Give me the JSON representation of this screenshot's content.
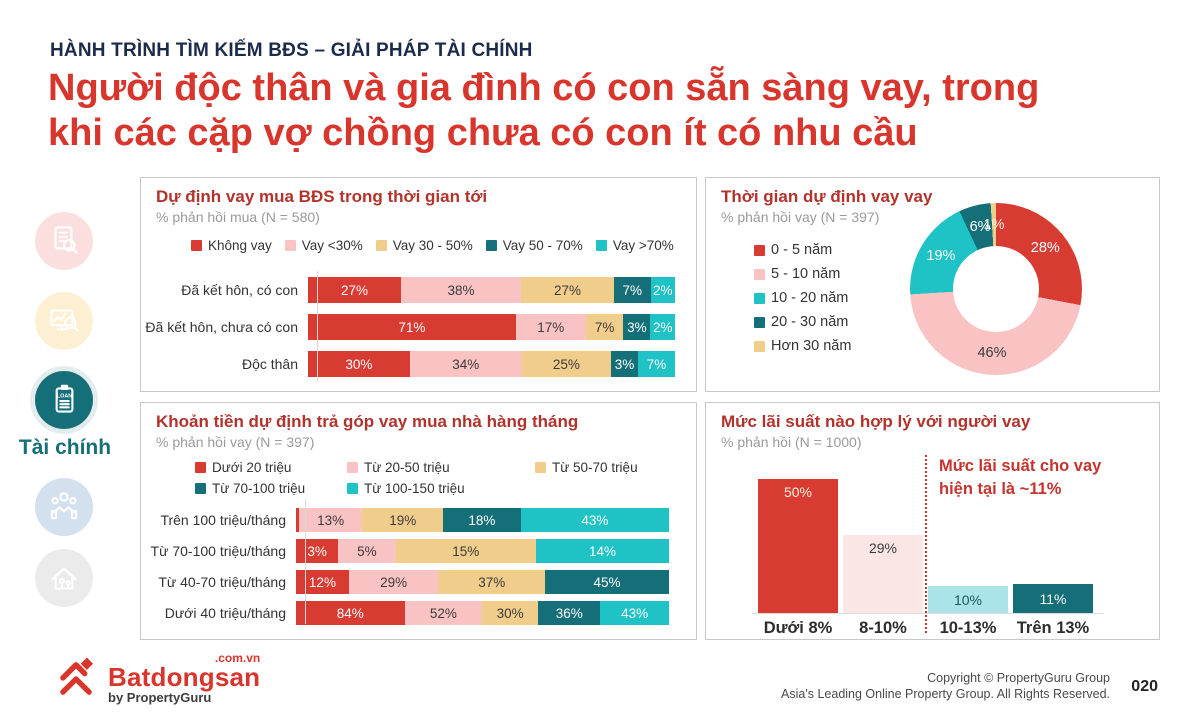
{
  "header": {
    "kicker": "HÀNH TRÌNH TÌM KIẾM BĐS – GIẢI PHÁP TÀI CHÍNH",
    "title_line1": "Người độc thân và gia đình có con sẵn sàng vay, trong",
    "title_line2": "khi các cặp vợ chồng chưa có con ít có nhu cầu"
  },
  "sidebar": {
    "active_label": "Tài chính",
    "active_badge": "LOAN",
    "icons": [
      "document-search-icon",
      "online-search-icon",
      "loan-icon",
      "handshake-icon",
      "home-family-icon"
    ]
  },
  "colors": {
    "red": "#d83b32",
    "pink": "#f8c3c2",
    "tan": "#f0cd8b",
    "teal": "#156f78",
    "cyan": "#1fc2c5",
    "light_pink": "#fae6e5",
    "light_cyan": "#aae4e9",
    "heading_red": "#d8352c",
    "panel_title_red": "#b2332c",
    "navy": "#1d2b4a"
  },
  "chart_data": [
    {
      "type": "bar",
      "variant": "horizontal-stacked",
      "title": "Dự định vay mua BĐS trong thời gian tới",
      "subtitle": "% phản hồi mua (N = 580)",
      "legend_position": "top",
      "series": [
        "Không vay",
        "Vay <30%",
        "Vay 30 - 50%",
        "Vay 50 - 70%",
        "Vay >70%"
      ],
      "series_colors": [
        "#d83b32",
        "#f8c3c2",
        "#f0cd8b",
        "#156f78",
        "#1fc2c5"
      ],
      "series_text_colors": [
        "#ffffff",
        "#3b3b3b",
        "#3b3b3b",
        "#ffffff",
        "#ffffff"
      ],
      "categories": [
        "Đã kết hôn, có con",
        "Đã kết hôn, chưa có con",
        "Độc thân"
      ],
      "values": [
        [
          27,
          38,
          27,
          7,
          2
        ],
        [
          71,
          17,
          7,
          3,
          2
        ],
        [
          30,
          34,
          25,
          3,
          7
        ]
      ],
      "unit": "%"
    },
    {
      "type": "pie",
      "variant": "donut",
      "title": "Thời gian dự định vay vay",
      "subtitle": "% phản hồi vay (N = 397)",
      "legend_position": "left",
      "labels": [
        "0 - 5 năm",
        "5 - 10 năm",
        "10 - 20 năm",
        "20 - 30 năm",
        "Hơn 30 năm"
      ],
      "values": [
        28,
        46,
        19,
        6,
        1
      ],
      "colors": [
        "#d83b32",
        "#f8c3c2",
        "#1fc2c5",
        "#156f78",
        "#f0cd8b"
      ],
      "label_text_colors": [
        "#ffffff",
        "#3b3b3b",
        "#ffffff",
        "#ffffff",
        "#fdf6e3"
      ],
      "unit": "%"
    },
    {
      "type": "bar",
      "variant": "horizontal-stacked",
      "title": "Khoản tiền dự định trả góp vay mua nhà hàng tháng",
      "subtitle": "% phản hồi vay (N = 397)",
      "legend_position": "top",
      "series": [
        "Dưới 20 triệu",
        "Từ 20-50 triệu",
        "Từ 50-70 triệu",
        "Từ 70-100 triệu",
        "Từ 100-150 triệu"
      ],
      "series_colors": [
        "#d83b32",
        "#f8c3c2",
        "#f0cd8b",
        "#156f78",
        "#1fc2c5"
      ],
      "series_text_colors": [
        "#ffffff",
        "#3b3b3b",
        "#3b3b3b",
        "#ffffff",
        "#ffffff"
      ],
      "categories": [
        "Trên 100 triệu/tháng",
        "Từ 70-100 triệu/tháng",
        "Từ 40-70 triệu/tháng",
        "Dưới 40 triệu/tháng"
      ],
      "values": [
        [
          1,
          13,
          19,
          18,
          43
        ],
        [
          3,
          5,
          15,
          0,
          14
        ],
        [
          12,
          29,
          37,
          45,
          0
        ],
        [
          84,
          52,
          30,
          36,
          43
        ]
      ],
      "unit": "%"
    },
    {
      "type": "bar",
      "variant": "vertical",
      "title": "Mức lãi suất nào hợp lý với người vay",
      "subtitle": "% phản hồi (N = 1000)",
      "categories": [
        "Dưới 8%",
        "8-10%",
        "10-13%",
        "Trên 13%"
      ],
      "values": [
        50,
        29,
        10,
        11
      ],
      "bar_colors": [
        "#d83b32",
        "#fae6e5",
        "#aae4e9",
        "#156f78"
      ],
      "label_text_colors": [
        "#fdf3da",
        "#3b3b3b",
        "#23545c",
        "#ffffff"
      ],
      "annotation": {
        "line1": "Mức lãi suất cho vay",
        "line2": "hiện tại là ~11%",
        "marker_between": [
          "8-10%",
          "10-13%"
        ]
      },
      "unit": "%"
    }
  ],
  "footer": {
    "logo_domain": ".com.vn",
    "logo_name": "Batdongsan",
    "logo_sub": "by PropertyGuru",
    "copyright_line1": "Copyright © PropertyGuru Group",
    "copyright_line2": "Asia's Leading Online Property Group. All Rights Reserved.",
    "page_number": "020"
  }
}
